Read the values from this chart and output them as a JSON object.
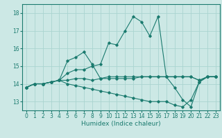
{
  "title": "",
  "xlabel": "Humidex (Indice chaleur)",
  "background_color": "#cce8e5",
  "grid_color": "#aad4d0",
  "line_color": "#1a7a6e",
  "xlim": [
    -0.5,
    23.5
  ],
  "ylim": [
    12.5,
    18.5
  ],
  "yticks": [
    13,
    14,
    15,
    16,
    17,
    18
  ],
  "xticks": [
    0,
    1,
    2,
    3,
    4,
    5,
    6,
    7,
    8,
    9,
    10,
    11,
    12,
    13,
    14,
    15,
    16,
    17,
    18,
    19,
    20,
    21,
    22,
    23
  ],
  "series": [
    [
      13.8,
      14.0,
      14.0,
      14.1,
      14.2,
      14.2,
      14.3,
      14.3,
      14.2,
      14.3,
      14.3,
      14.3,
      14.3,
      14.3,
      14.4,
      14.4,
      14.4,
      14.4,
      14.4,
      14.4,
      14.4,
      14.2,
      14.4,
      14.4
    ],
    [
      13.8,
      14.0,
      14.0,
      14.1,
      14.2,
      14.6,
      14.8,
      14.8,
      15.0,
      15.1,
      16.3,
      16.2,
      17.0,
      17.8,
      17.5,
      16.7,
      17.8,
      14.4,
      13.8,
      13.1,
      12.7,
      14.1,
      14.4,
      14.4
    ],
    [
      13.8,
      14.0,
      14.0,
      14.1,
      14.2,
      14.0,
      13.9,
      13.8,
      13.7,
      13.6,
      13.5,
      13.4,
      13.3,
      13.2,
      13.1,
      13.0,
      13.0,
      13.0,
      12.8,
      12.7,
      13.1,
      14.1,
      14.4,
      14.4
    ],
    [
      13.8,
      14.0,
      14.0,
      14.1,
      14.2,
      15.3,
      15.5,
      15.8,
      15.1,
      14.3,
      14.4,
      14.4,
      14.4,
      14.4,
      14.4,
      14.4,
      14.4,
      14.4,
      14.4,
      14.4,
      14.4,
      14.2,
      14.4,
      14.4
    ]
  ],
  "tick_fontsize": 5.5,
  "xlabel_fontsize": 6.5
}
